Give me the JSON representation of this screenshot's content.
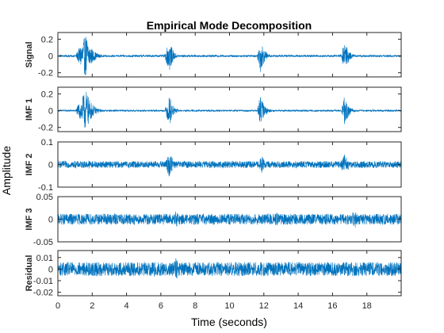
{
  "chart_data": {
    "type": "line",
    "title": "Empirical Mode Decomposition",
    "xlabel": "Time (seconds)",
    "ylabel": "Amplitude",
    "xlim": [
      0,
      20
    ],
    "x_ticks": [
      0,
      2,
      4,
      6,
      8,
      10,
      12,
      14,
      16,
      18
    ],
    "x_tick_labels": [
      "0",
      "2",
      "4",
      "6",
      "8",
      "10",
      "12",
      "14",
      "16",
      "18"
    ],
    "line_color": "#0072BD",
    "grid": false,
    "panels": [
      {
        "name": "Signal",
        "ylim": [
          -0.25,
          0.28
        ],
        "y_ticks": [
          -0.2,
          0,
          0.2
        ],
        "y_tick_labels": [
          "-0.2",
          "0",
          "0.2"
        ],
        "noise_amp": 0.012,
        "bursts": [
          {
            "start": 1.0,
            "end": 2.6,
            "peak_time": 1.65,
            "amp": 0.26
          },
          {
            "start": 6.2,
            "end": 7.1,
            "peak_time": 6.5,
            "amp": 0.2
          },
          {
            "start": 11.6,
            "end": 12.5,
            "peak_time": 11.8,
            "amp": 0.2
          },
          {
            "start": 16.5,
            "end": 17.4,
            "peak_time": 16.7,
            "amp": 0.2
          }
        ]
      },
      {
        "name": "IMF 1",
        "ylim": [
          -0.25,
          0.28
        ],
        "y_ticks": [
          -0.2,
          0,
          0.2
        ],
        "y_tick_labels": [
          "-0.2",
          "0",
          "0.2"
        ],
        "noise_amp": 0.01,
        "bursts": [
          {
            "start": 1.0,
            "end": 2.6,
            "peak_time": 1.65,
            "amp": 0.25
          },
          {
            "start": 6.2,
            "end": 7.1,
            "peak_time": 6.5,
            "amp": 0.19
          },
          {
            "start": 11.6,
            "end": 12.5,
            "peak_time": 11.8,
            "amp": 0.19
          },
          {
            "start": 16.5,
            "end": 17.4,
            "peak_time": 16.7,
            "amp": 0.19
          }
        ]
      },
      {
        "name": "IMF 2",
        "ylim": [
          -0.1,
          0.1
        ],
        "y_ticks": [
          -0.1,
          0,
          0.1
        ],
        "y_tick_labels": [
          "-0.1",
          "0",
          "0.1"
        ],
        "noise_amp": 0.015,
        "bursts": [
          {
            "start": 1.5,
            "end": 2.6,
            "peak_time": 1.8,
            "amp": 0.02
          },
          {
            "start": 6.2,
            "end": 7.2,
            "peak_time": 6.5,
            "amp": 0.06
          },
          {
            "start": 11.6,
            "end": 12.6,
            "peak_time": 11.9,
            "amp": 0.04
          },
          {
            "start": 16.4,
            "end": 17.5,
            "peak_time": 16.7,
            "amp": 0.05
          }
        ]
      },
      {
        "name": "IMF 3",
        "ylim": [
          -0.05,
          0.05
        ],
        "y_ticks": [
          -0.05,
          0,
          0.05
        ],
        "y_tick_labels": [
          "-0.05",
          "0",
          "0.05"
        ],
        "noise_amp": 0.012,
        "bursts": [
          {
            "start": 6.5,
            "end": 7.5,
            "peak_time": 6.9,
            "amp": 0.02
          },
          {
            "start": 12.3,
            "end": 13.2,
            "peak_time": 12.8,
            "amp": 0.018
          },
          {
            "start": 16.9,
            "end": 17.9,
            "peak_time": 17.3,
            "amp": 0.022
          }
        ]
      },
      {
        "name": "Residual",
        "ylim": [
          -0.023,
          0.016
        ],
        "y_ticks": [
          -0.02,
          -0.01,
          0,
          0.01
        ],
        "y_tick_labels": [
          "-0.02",
          "-0.01",
          "0",
          "0.01"
        ],
        "noise_amp": 0.006,
        "bursts": [
          {
            "start": 6.5,
            "end": 7.4,
            "peak_time": 6.9,
            "amp": 0.01
          },
          {
            "start": 7.3,
            "end": 7.8,
            "peak_time": 7.5,
            "amp": 0.006
          }
        ]
      }
    ]
  }
}
